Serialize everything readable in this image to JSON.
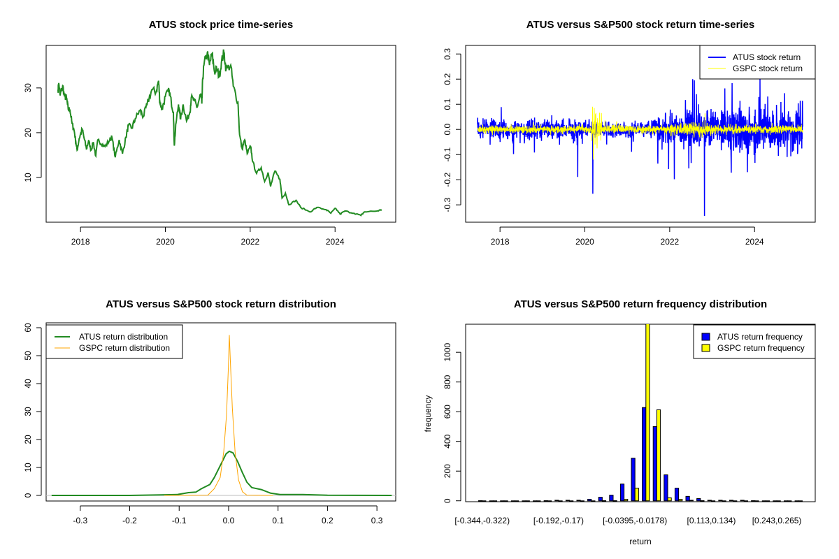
{
  "chart_data": [
    {
      "type": "line",
      "title": "ATUS stock price time-series",
      "xlabel": "",
      "ylabel": "",
      "xlim": [
        2017.19,
        2025.43
      ],
      "ylim": [
        0,
        39.5
      ],
      "x_ticks": [
        2018,
        2020,
        2022,
        2024
      ],
      "x_tick_labels": [
        "2018",
        "2020",
        "2022",
        "2024"
      ],
      "y_ticks": [
        10,
        20,
        30
      ],
      "y_tick_labels": [
        "10",
        "20",
        "30"
      ],
      "grid": false,
      "series": [
        {
          "color": "#228B22",
          "points": [
            [
              2017.47,
              29.6
            ],
            [
              2017.49,
              30.9
            ],
            [
              2017.52,
              28.3
            ],
            [
              2017.58,
              30.5
            ],
            [
              2017.62,
              28.1
            ],
            [
              2017.67,
              27.8
            ],
            [
              2017.71,
              25.2
            ],
            [
              2017.75,
              25.2
            ],
            [
              2017.8,
              22.1
            ],
            [
              2017.85,
              20.5
            ],
            [
              2017.89,
              17.9
            ],
            [
              2017.92,
              16.1
            ],
            [
              2017.97,
              18.7
            ],
            [
              2018.04,
              20.8
            ],
            [
              2018.08,
              19.0
            ],
            [
              2018.14,
              16.4
            ],
            [
              2018.19,
              18.2
            ],
            [
              2018.25,
              16.1
            ],
            [
              2018.3,
              17.9
            ],
            [
              2018.36,
              14.8
            ],
            [
              2018.41,
              18.4
            ],
            [
              2018.52,
              17.4
            ],
            [
              2018.58,
              16.9
            ],
            [
              2018.69,
              18.4
            ],
            [
              2018.74,
              19.0
            ],
            [
              2018.82,
              14.5
            ],
            [
              2018.91,
              18.4
            ],
            [
              2018.99,
              15.3
            ],
            [
              2019.07,
              19.0
            ],
            [
              2019.13,
              21.6
            ],
            [
              2019.21,
              21.0
            ],
            [
              2019.29,
              23.1
            ],
            [
              2019.4,
              25.0
            ],
            [
              2019.48,
              23.6
            ],
            [
              2019.57,
              26.3
            ],
            [
              2019.68,
              29.6
            ],
            [
              2019.78,
              29.1
            ],
            [
              2019.84,
              31.6
            ],
            [
              2019.87,
              27.0
            ],
            [
              2019.92,
              25.2
            ],
            [
              2020.0,
              28.1
            ],
            [
              2020.09,
              29.4
            ],
            [
              2020.14,
              26.8
            ],
            [
              2020.19,
              24.7
            ],
            [
              2020.21,
              17.1
            ],
            [
              2020.25,
              22.1
            ],
            [
              2020.31,
              26.3
            ],
            [
              2020.36,
              23.1
            ],
            [
              2020.42,
              26.3
            ],
            [
              2020.5,
              22.6
            ],
            [
              2020.58,
              24.7
            ],
            [
              2020.61,
              27.8
            ],
            [
              2020.69,
              27.0
            ],
            [
              2020.75,
              25.7
            ],
            [
              2020.83,
              28.6
            ],
            [
              2020.86,
              26.5
            ],
            [
              2020.88,
              32.0
            ],
            [
              2020.91,
              35.1
            ],
            [
              2020.99,
              38.0
            ],
            [
              2021.04,
              35.1
            ],
            [
              2021.1,
              37.7
            ],
            [
              2021.16,
              33.5
            ],
            [
              2021.21,
              34.3
            ],
            [
              2021.27,
              32.5
            ],
            [
              2021.32,
              35.6
            ],
            [
              2021.38,
              38.0
            ],
            [
              2021.43,
              34.1
            ],
            [
              2021.54,
              35.1
            ],
            [
              2021.6,
              30.4
            ],
            [
              2021.71,
              26.8
            ],
            [
              2021.75,
              19.5
            ],
            [
              2021.81,
              16.4
            ],
            [
              2021.87,
              18.4
            ],
            [
              2021.93,
              15.3
            ],
            [
              2022.01,
              16.9
            ],
            [
              2022.06,
              13.5
            ],
            [
              2022.15,
              10.9
            ],
            [
              2022.26,
              12.2
            ],
            [
              2022.34,
              9.1
            ],
            [
              2022.42,
              11.1
            ],
            [
              2022.48,
              8.0
            ],
            [
              2022.58,
              11.4
            ],
            [
              2022.7,
              9.6
            ],
            [
              2022.75,
              5.4
            ],
            [
              2022.83,
              6.5
            ],
            [
              2022.91,
              3.9
            ],
            [
              2023.08,
              4.9
            ],
            [
              2023.19,
              3.3
            ],
            [
              2023.41,
              2.3
            ],
            [
              2023.57,
              3.3
            ],
            [
              2023.79,
              2.8
            ],
            [
              2023.9,
              2.0
            ],
            [
              2024.01,
              3.1
            ],
            [
              2024.12,
              1.8
            ],
            [
              2024.23,
              2.5
            ],
            [
              2024.45,
              2.0
            ],
            [
              2024.61,
              1.5
            ],
            [
              2024.69,
              2.3
            ],
            [
              2024.99,
              2.5
            ],
            [
              2025.1,
              2.8
            ]
          ]
        }
      ]
    },
    {
      "type": "line",
      "title": "ATUS versus S&P500 stock return time-series",
      "xlabel": "",
      "ylabel": "",
      "xlim": [
        2017.19,
        2025.43
      ],
      "ylim": [
        -0.369,
        0.334
      ],
      "x_ticks": [
        2018,
        2020,
        2022,
        2024
      ],
      "x_tick_labels": [
        "2018",
        "2020",
        "2022",
        "2024"
      ],
      "y_ticks": [
        -0.3,
        -0.2,
        -0.1,
        0,
        0.1,
        0.2,
        0.3
      ],
      "y_tick_labels": [
        "-0.3",
        "-0.2",
        "-0.1",
        "0.0",
        "0.1",
        "0.2",
        "0.3"
      ],
      "grid": false,
      "legend": {
        "position": "top-right"
      },
      "series": [
        {
          "name": "ATUS stock return",
          "color": "#0000FF",
          "start": 2017.47,
          "end": 2025.14,
          "volatility_sd": [
            [
              2017.4,
              2020.0,
              0.018
            ],
            [
              2020.0,
              2021.6,
              0.015
            ],
            [
              2021.6,
              2022.4,
              0.03
            ],
            [
              2022.4,
              2025.2,
              0.038
            ]
          ],
          "spikes": [
            [
              2018.03,
              0.089
            ],
            [
              2018.32,
              -0.098
            ],
            [
              2018.81,
              -0.092
            ],
            [
              2019.83,
              -0.189
            ],
            [
              2020.19,
              -0.256
            ],
            [
              2021.1,
              -0.089
            ],
            [
              2021.72,
              -0.136
            ],
            [
              2022.11,
              -0.198
            ],
            [
              2022.37,
              0.117
            ],
            [
              2022.45,
              -0.155
            ],
            [
              2022.54,
              0.2
            ],
            [
              2022.58,
              0.195
            ],
            [
              2022.82,
              -0.344
            ],
            [
              2023.3,
              0.163
            ],
            [
              2023.45,
              -0.172
            ],
            [
              2023.47,
              0.184
            ],
            [
              2023.83,
              -0.17
            ],
            [
              2024.01,
              -0.133
            ],
            [
              2024.13,
              0.2
            ],
            [
              2024.56,
              -0.105
            ],
            [
              2024.71,
              0.144
            ]
          ]
        },
        {
          "name": "GSPC stock return",
          "color": "#FFFF00",
          "start": 2017.47,
          "end": 2025.14,
          "volatility_sd": [
            [
              2017.4,
              2020.15,
              0.007
            ],
            [
              2020.15,
              2020.4,
              0.03
            ],
            [
              2020.4,
              2022.0,
              0.008
            ],
            [
              2022.0,
              2023.0,
              0.013
            ],
            [
              2023.0,
              2025.2,
              0.008
            ]
          ],
          "spikes": [
            [
              2020.18,
              0.09
            ],
            [
              2020.2,
              -0.12
            ],
            [
              2020.22,
              0.085
            ],
            [
              2020.24,
              -0.06
            ],
            [
              2020.26,
              0.065
            ]
          ]
        }
      ]
    },
    {
      "type": "line",
      "title": "ATUS versus S&P500 stock return distribution",
      "xlabel": "",
      "ylabel": "",
      "xlim": [
        -0.369,
        0.338
      ],
      "ylim": [
        -2,
        61.75
      ],
      "x_ticks": [
        -0.3,
        -0.2,
        -0.1,
        0,
        0.1,
        0.2,
        0.3
      ],
      "x_tick_labels": [
        "-0.3",
        "-0.2",
        "-0.1",
        "0.0",
        "0.1",
        "0.2",
        "0.3"
      ],
      "y_ticks": [
        0,
        10,
        20,
        30,
        40,
        50,
        60
      ],
      "y_tick_labels": [
        "0",
        "10",
        "20",
        "30",
        "40",
        "50",
        "60"
      ],
      "grid": false,
      "legend": {
        "position": "top-left"
      },
      "series": [
        {
          "name": "ATUS return distribution",
          "color": "#228B22",
          "points": [
            [
              -0.358,
              0
            ],
            [
              -0.2,
              0
            ],
            [
              -0.137,
              0.2
            ],
            [
              -0.104,
              0.3
            ],
            [
              -0.081,
              1.0
            ],
            [
              -0.066,
              1.2
            ],
            [
              -0.055,
              2.4
            ],
            [
              -0.038,
              3.9
            ],
            [
              -0.029,
              6.4
            ],
            [
              -0.017,
              10.6
            ],
            [
              -0.005,
              14.9
            ],
            [
              0.0015,
              15.8
            ],
            [
              0.009,
              15.2
            ],
            [
              0.018,
              12.2
            ],
            [
              0.028,
              8.1
            ],
            [
              0.037,
              4.75
            ],
            [
              0.047,
              2.8
            ],
            [
              0.066,
              2.1
            ],
            [
              0.085,
              0.8
            ],
            [
              0.104,
              0.3
            ],
            [
              0.15,
              0.3
            ],
            [
              0.2,
              0.05
            ],
            [
              0.33,
              0
            ]
          ]
        },
        {
          "name": "GSPC return distribution",
          "color": "#FFA500",
          "points": [
            [
              -0.13,
              0
            ],
            [
              -0.042,
              0.1
            ],
            [
              -0.029,
              2.4
            ],
            [
              -0.017,
              6.4
            ],
            [
              -0.0099,
              15.6
            ],
            [
              -0.0042,
              28.9
            ],
            [
              -0.0005,
              45.6
            ],
            [
              0.0015,
              57.3
            ],
            [
              0.0038,
              47.3
            ],
            [
              0.0075,
              31.3
            ],
            [
              0.013,
              15.6
            ],
            [
              0.02,
              5.6
            ],
            [
              0.028,
              1.3
            ],
            [
              0.037,
              0.1
            ],
            [
              0.09,
              0
            ]
          ]
        }
      ]
    },
    {
      "type": "bar",
      "title": "ATUS versus S&P500 return frequency distribution",
      "xlabel": "return",
      "ylabel": "frequency",
      "ylim": [
        -6,
        1189
      ],
      "y_ticks": [
        0,
        200,
        400,
        600,
        800,
        1000
      ],
      "y_tick_labels": [
        "0",
        "200",
        "400",
        "600",
        "800",
        "1000"
      ],
      "grid": false,
      "legend": {
        "position": "top-right"
      },
      "categories": [
        "[-0.344,-0.322)",
        "",
        "",
        "",
        "",
        "",
        "",
        "[-0.192,-0.17)",
        "",
        "",
        "",
        "",
        "",
        "",
        "[-0.0395,-0.0178)",
        "",
        "",
        "",
        "",
        "",
        "",
        "[0.113,0.134)",
        "",
        "",
        "",
        "",
        "",
        "[0.243,0.265)",
        "",
        ""
      ],
      "series": [
        {
          "name": "ATUS return frequency",
          "color": "#0000FF",
          "values": [
            1,
            0,
            0,
            0,
            0,
            0,
            1,
            4,
            4,
            4,
            10,
            24,
            38,
            113,
            287,
            628,
            500,
            175,
            85,
            30,
            15,
            4,
            4,
            4,
            4,
            1,
            0,
            0,
            0,
            0
          ]
        },
        {
          "name": "GSPC return frequency",
          "color": "#FFFF00",
          "values": [
            0,
            0,
            0,
            0,
            0,
            0,
            0,
            0,
            0,
            0,
            0,
            1,
            1,
            10,
            85,
            1250,
            613,
            20,
            10,
            4,
            1,
            0,
            0,
            0,
            0,
            0,
            0,
            0,
            0,
            0
          ]
        }
      ]
    }
  ]
}
